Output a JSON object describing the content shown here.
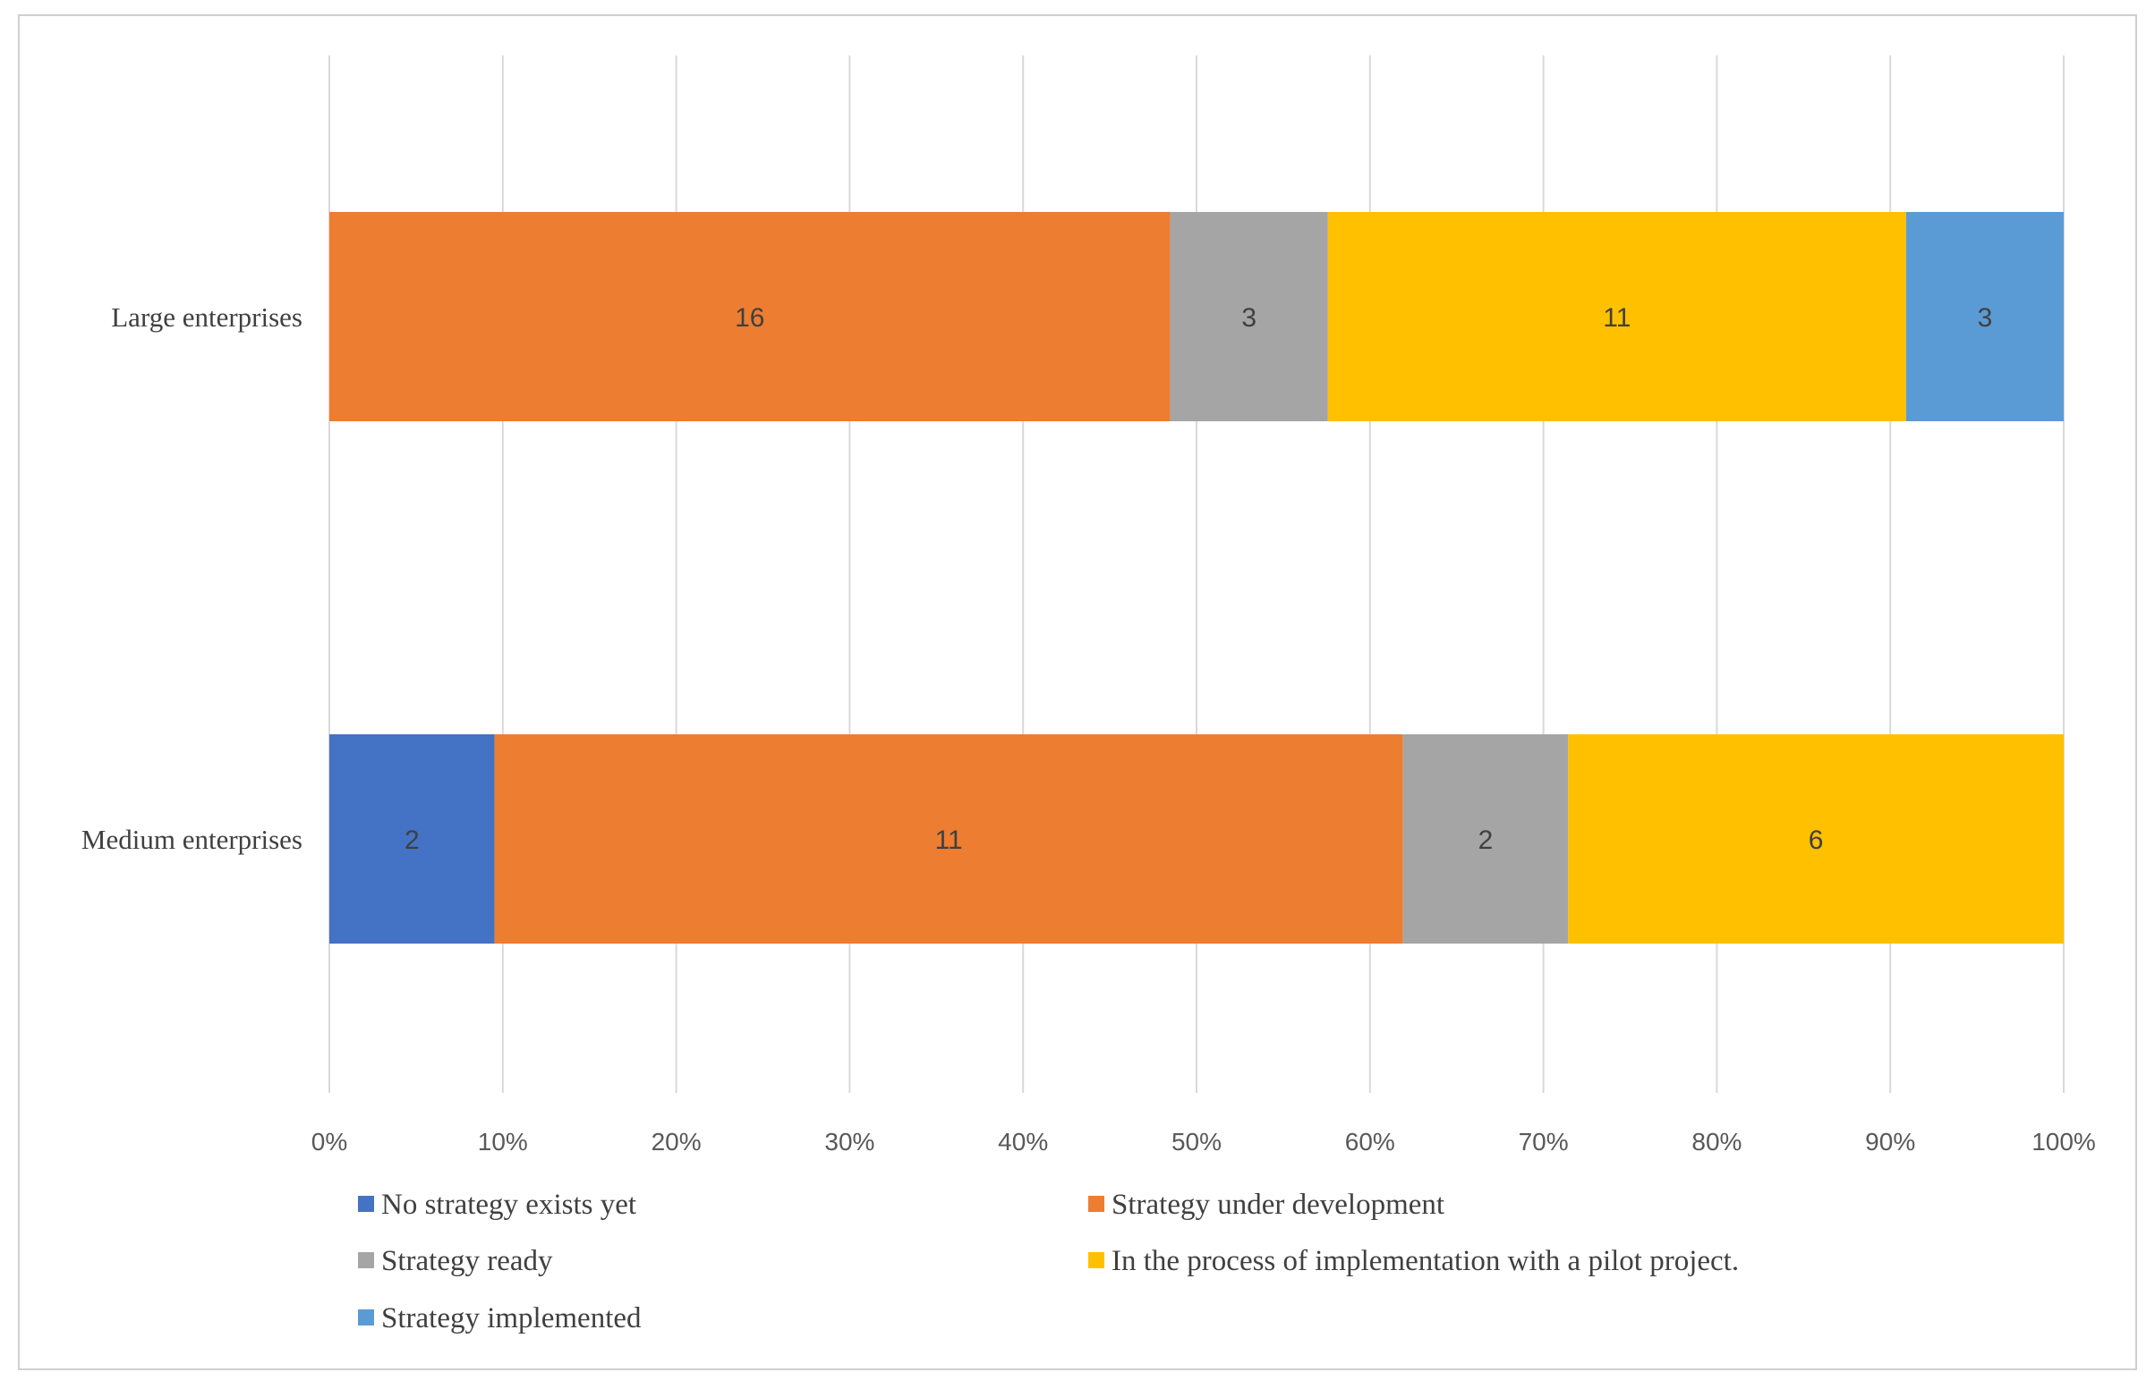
{
  "chart_data": {
    "type": "bar",
    "orientation": "horizontal",
    "stacked": "percent",
    "title": "",
    "xlabel": "",
    "ylabel": "",
    "xlim": [
      0,
      100
    ],
    "x_ticks": [
      "0%",
      "10%",
      "20%",
      "30%",
      "40%",
      "50%",
      "60%",
      "70%",
      "80%",
      "90%",
      "100%"
    ],
    "grid": true,
    "legend_position": "bottom",
    "categories": [
      "Large enterprises",
      "Medium enterprises"
    ],
    "series": [
      {
        "name": "No strategy exists yet",
        "color": "#4472c4",
        "values": [
          0,
          2
        ]
      },
      {
        "name": "Strategy under development",
        "color": "#ed7d31",
        "values": [
          16,
          11
        ]
      },
      {
        "name": "Strategy ready",
        "color": "#a5a5a5",
        "values": [
          3,
          2
        ]
      },
      {
        "name": "In the process of implementation with a pilot project.",
        "color": "#ffc000",
        "values": [
          11,
          6
        ]
      },
      {
        "name": "Strategy implemented",
        "color": "#5b9bd5",
        "values": [
          3,
          0
        ]
      }
    ]
  }
}
